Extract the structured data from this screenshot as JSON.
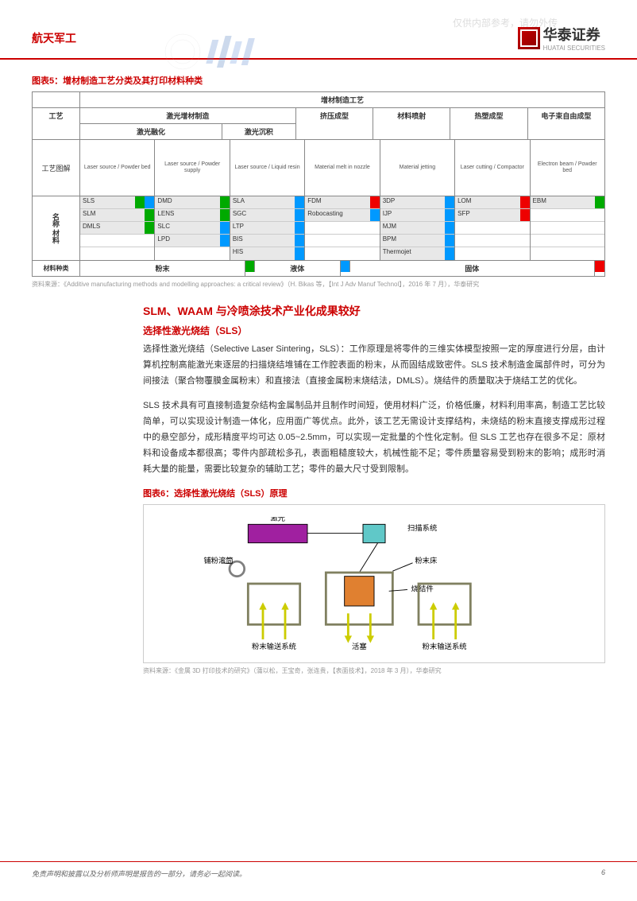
{
  "watermark": "仅供内部参考，请勿外传",
  "header": {
    "category": "航天军工",
    "brand": "华泰证券",
    "brand_en": "HUATAI SECURITIES"
  },
  "fig5": {
    "title": "图表5：增材制造工艺分类及其打印材料种类",
    "main_header": "增材制造工艺",
    "row1": {
      "c0": "工艺",
      "c1": "激光增材制造",
      "c2": "挤压成型",
      "c3": "材料喷射",
      "c4": "热塑成型",
      "c5": "电子束自由成型"
    },
    "row2": {
      "c1": "激光融化",
      "c2": "激光沉积"
    },
    "diagram_label": "工艺图解",
    "diags": [
      "Laser source / Powder bed",
      "Laser source / Powder supply",
      "Laser source / Liquid resin",
      "Material melt in nozzle",
      "Material jetting",
      "Laser cutting / Compactor",
      "Electron beam / Powder bed"
    ],
    "name_label": "名称 材料",
    "techs": {
      "c1": [
        {
          "n": "SLS",
          "g": true,
          "b": true
        },
        {
          "n": "SLM",
          "g": true
        },
        {
          "n": "DMLS",
          "g": true
        }
      ],
      "c2": [
        {
          "n": "DMD",
          "g": true
        },
        {
          "n": "LENS",
          "g": true
        },
        {
          "n": "SLC",
          "b": true
        },
        {
          "n": "LPD",
          "b": true
        }
      ],
      "c3": [
        {
          "n": "SLA",
          "b": true
        },
        {
          "n": "SGC",
          "b": true
        },
        {
          "n": "LTP",
          "b": true
        },
        {
          "n": "BIS",
          "b": true
        },
        {
          "n": "HIS",
          "b": true
        }
      ],
      "c4": [
        {
          "n": "FDM",
          "r": true
        },
        {
          "n": "Robocasting",
          "b": true
        }
      ],
      "c5": [
        {
          "n": "3DP",
          "b": true
        },
        {
          "n": "IJP",
          "b": true
        },
        {
          "n": "MJM",
          "b": true
        },
        {
          "n": "BPM",
          "b": true
        },
        {
          "n": "Thermojet",
          "b": true
        }
      ],
      "c6": [
        {
          "n": "LOM",
          "r": true
        },
        {
          "n": "SFP",
          "r": true
        }
      ],
      "c7": [
        {
          "n": "EBM",
          "g": true
        }
      ]
    },
    "mat": {
      "label": "材料种类",
      "c1": "粉末",
      "c2": "液体",
      "c3": "固体"
    },
    "source": "资料来源：《Additive manufacturing methods and modelling approaches: a critical review》（H. Bikas 等，【Int J Adv Manuf Technol】，2016 年 7 月），华泰研究"
  },
  "section": {
    "title": "SLM、WAAM 与冷喷涂技术产业化成果较好",
    "subtitle": "选择性激光烧结（SLS）",
    "p1": "选择性激光烧结（Selective Laser Sintering，SLS）：工作原理是将零件的三维实体模型按照一定的厚度进行分层，由计算机控制高能激光束逐层的扫描烧结堆铺在工作腔表面的粉末，从而固结成致密件。SLS 技术制造金属部件时，可分为间接法（聚合物覆膜金属粉末）和直接法（直接金属粉末烧结法，DMLS）。烧结件的质量取决于烧结工艺的优化。",
    "p2": "SLS 技术具有可直接制造复杂结构金属制品并且制作时间短，使用材料广泛，价格低廉，材料利用率高，制造工艺比较简单，可以实现设计制造一体化，应用面广等优点。此外，该工艺无需设计支撑结构，未烧结的粉末直接支撑成形过程中的悬空部分，成形精度平均可达 0.05~2.5mm，可以实现一定批量的个性化定制。但 SLS 工艺也存在很多不足：原材料和设备成本都很高；零件内部疏松多孔，表面粗糙度较大，机械性能不足；零件质量容易受到粉末的影响；成形时消耗大量的能量，需要比较复杂的辅助工艺；零件的最大尺寸受到限制。"
  },
  "fig6": {
    "title": "图表6：选择性激光烧结（SLS）原理",
    "labels": {
      "laser": "激光",
      "scan": "扫描系统",
      "roller": "铺粉滚筒",
      "bed": "粉末床",
      "part": "烧结件",
      "feed1": "粉末输送系统",
      "piston": "活塞",
      "feed2": "粉末输送系统"
    },
    "colors": {
      "laser": "#a020a0",
      "scan": "#60c8c8",
      "roller": "#808080",
      "part": "#e08030",
      "wall": "#808060",
      "arrow": "#cccc00"
    },
    "source": "资料来源：《金属 3D 打印技术的研究》（蒲以松，王宝奇，张连贵，【表面技术】，2018 年 3 月），华泰研究"
  },
  "footer": {
    "disclaimer": "免责声明和披露以及分析师声明是报告的一部分，请务必一起阅读。",
    "page": "6"
  }
}
